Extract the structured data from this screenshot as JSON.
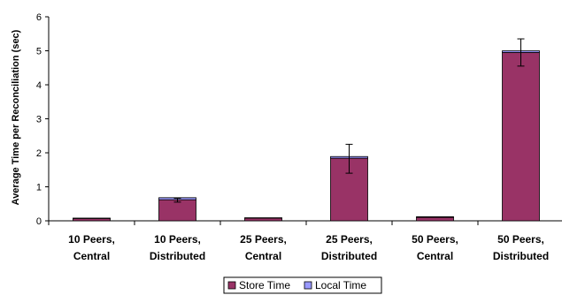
{
  "chart_data": {
    "type": "bar",
    "stacked": true,
    "title": "",
    "xlabel": "",
    "ylabel": "Average Time per Reconciliation (sec)",
    "ylim": [
      0,
      6
    ],
    "yticks": [
      "0",
      "1",
      "2",
      "3",
      "4",
      "5",
      "6"
    ],
    "categories": [
      [
        "10 Peers,",
        "Central"
      ],
      [
        "10 Peers,",
        "Distributed"
      ],
      [
        "25 Peers,",
        "Central"
      ],
      [
        "25 Peers,",
        "Distributed"
      ],
      [
        "50 Peers,",
        "Central"
      ],
      [
        "50 Peers,",
        "Distributed"
      ]
    ],
    "series": [
      {
        "name": "Store Time",
        "color": "#993366",
        "values": [
          0.07,
          0.62,
          0.08,
          1.84,
          0.1,
          4.95
        ]
      },
      {
        "name": "Local Time",
        "color": "#9999ff",
        "values": [
          0.01,
          0.06,
          0.01,
          0.05,
          0.02,
          0.05
        ]
      }
    ],
    "error_bars": [
      {
        "center": 0.08,
        "low": 0.08,
        "high": 0.08
      },
      {
        "center": 0.6,
        "low": 0.55,
        "high": 0.66
      },
      {
        "center": 0.09,
        "low": 0.09,
        "high": 0.09
      },
      {
        "center": 1.82,
        "low": 1.4,
        "high": 2.25
      },
      {
        "center": 0.12,
        "low": 0.12,
        "high": 0.12
      },
      {
        "center": 4.95,
        "low": 4.55,
        "high": 5.35
      }
    ],
    "grid": false,
    "legend_position": "bottom"
  }
}
